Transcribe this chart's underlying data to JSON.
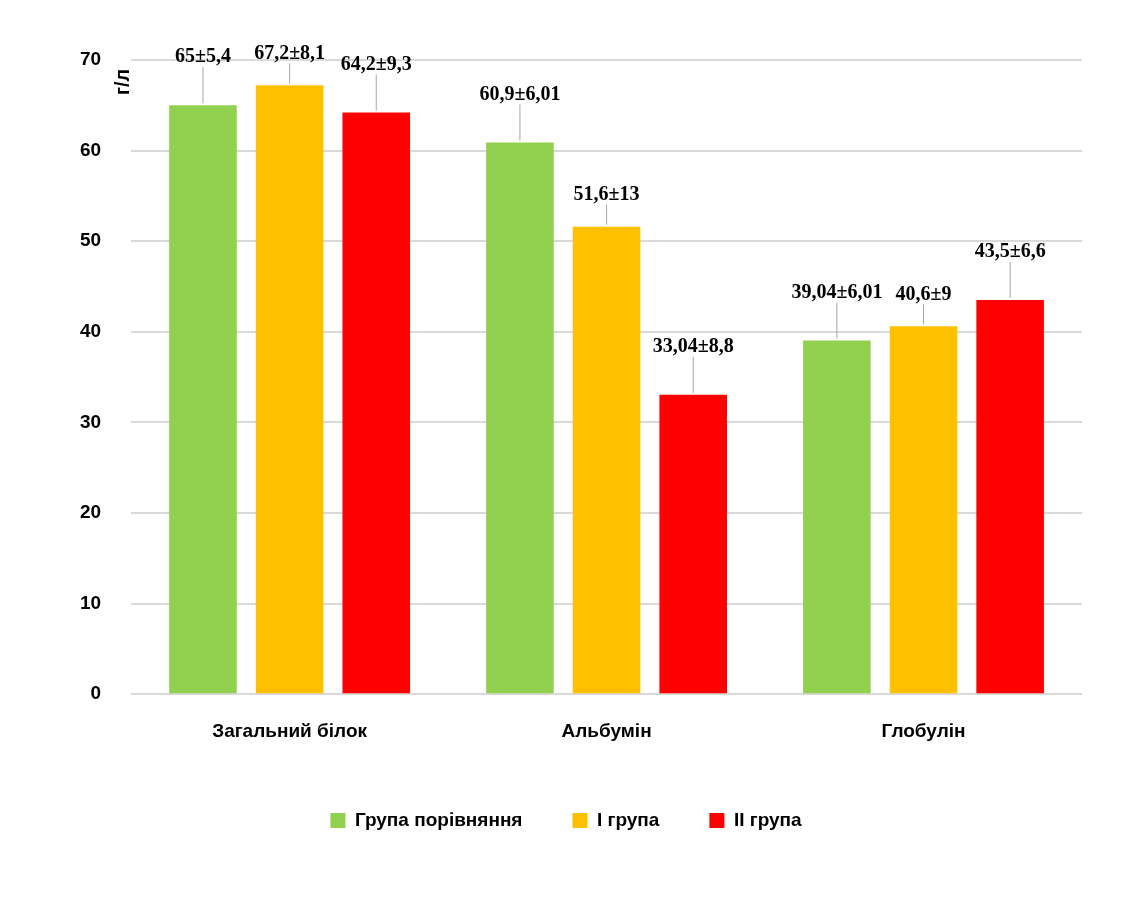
{
  "chart_data": {
    "type": "bar",
    "ylabel": "г/л",
    "categories": [
      "Загальний білок",
      "Альбумін",
      "Глобулін"
    ],
    "series": [
      {
        "name": "Група порівняння",
        "color": "#92d050",
        "values": [
          65,
          60.9,
          39.04
        ],
        "value_labels": [
          "65±5,4",
          "60,9±6,01",
          "39,04±6,01"
        ]
      },
      {
        "name": "І група",
        "color": "#ffc000",
        "values": [
          67.2,
          51.6,
          40.6
        ],
        "value_labels": [
          "67,2±8,1",
          "51,6±13",
          "40,6±9"
        ]
      },
      {
        "name": "ІІ група",
        "color": "#ff0000",
        "values": [
          64.2,
          33.04,
          43.5
        ],
        "value_labels": [
          "64,2±9,3",
          "33,04±8,8",
          "43,5±6,6"
        ]
      }
    ],
    "ylim": [
      0,
      70
    ],
    "yticks": [
      0,
      10,
      20,
      30,
      40,
      50,
      60,
      70
    ],
    "grid": "y",
    "legend": "bottom"
  }
}
